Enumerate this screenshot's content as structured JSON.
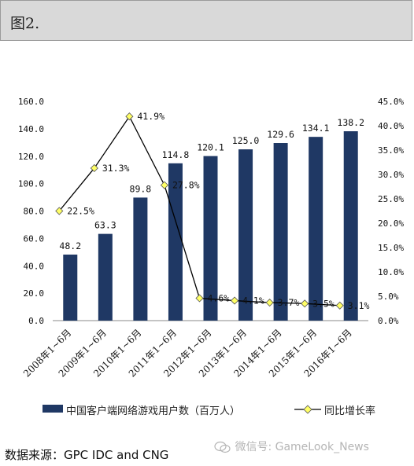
{
  "header": {
    "title": "图2."
  },
  "legend": {
    "bar_label": "中国客户端网络游戏用户数（百万人）",
    "line_label": "同比增长率"
  },
  "source": "数据来源：GPC IDC and CNG",
  "watermark": {
    "text": "微信号: GameLook_News",
    "icon": "wechat-icon"
  },
  "colors": {
    "bar": "#1f3864",
    "line": "#000000",
    "marker": "#ffff66"
  },
  "chart_data": {
    "type": "bar",
    "categories": [
      "2008年1~6月",
      "2009年1~6月",
      "2010年1~6月",
      "2011年1~6月",
      "2012年1~6月",
      "2013年1~6月",
      "2014年1~6月",
      "2015年1~6月",
      "2016年1~6月"
    ],
    "series": [
      {
        "name": "中国客户端网络游戏用户数（百万人）",
        "type": "bar",
        "axis": "left",
        "values": [
          48.2,
          63.3,
          89.8,
          114.8,
          120.1,
          125.0,
          129.6,
          134.1,
          138.2
        ],
        "labels": [
          "48.2",
          "63.3",
          "89.8",
          "114.8",
          "120.1",
          "125.0",
          "129.6",
          "134.1",
          "138.2"
        ]
      },
      {
        "name": "同比增长率",
        "type": "line",
        "axis": "right",
        "values": [
          22.5,
          31.3,
          41.9,
          27.8,
          4.6,
          4.1,
          3.7,
          3.5,
          3.1
        ],
        "labels": [
          "22.5%",
          "31.3%",
          "41.9%",
          "27.8%",
          "4.6%",
          "4.1%",
          "3.7%",
          "3.5%",
          "3.1%"
        ]
      }
    ],
    "y_left": {
      "min": 0,
      "max": 160,
      "ticks": [
        "0.0",
        "20.0",
        "40.0",
        "60.0",
        "80.0",
        "100.0",
        "120.0",
        "140.0",
        "160.0"
      ]
    },
    "y_right": {
      "min": 0,
      "max": 45,
      "ticks": [
        "0.0%",
        "5.0%",
        "10.0%",
        "15.0%",
        "20.0%",
        "25.0%",
        "30.0%",
        "35.0%",
        "40.0%",
        "45.0%"
      ]
    },
    "grid": false,
    "legend_position": "bottom"
  }
}
